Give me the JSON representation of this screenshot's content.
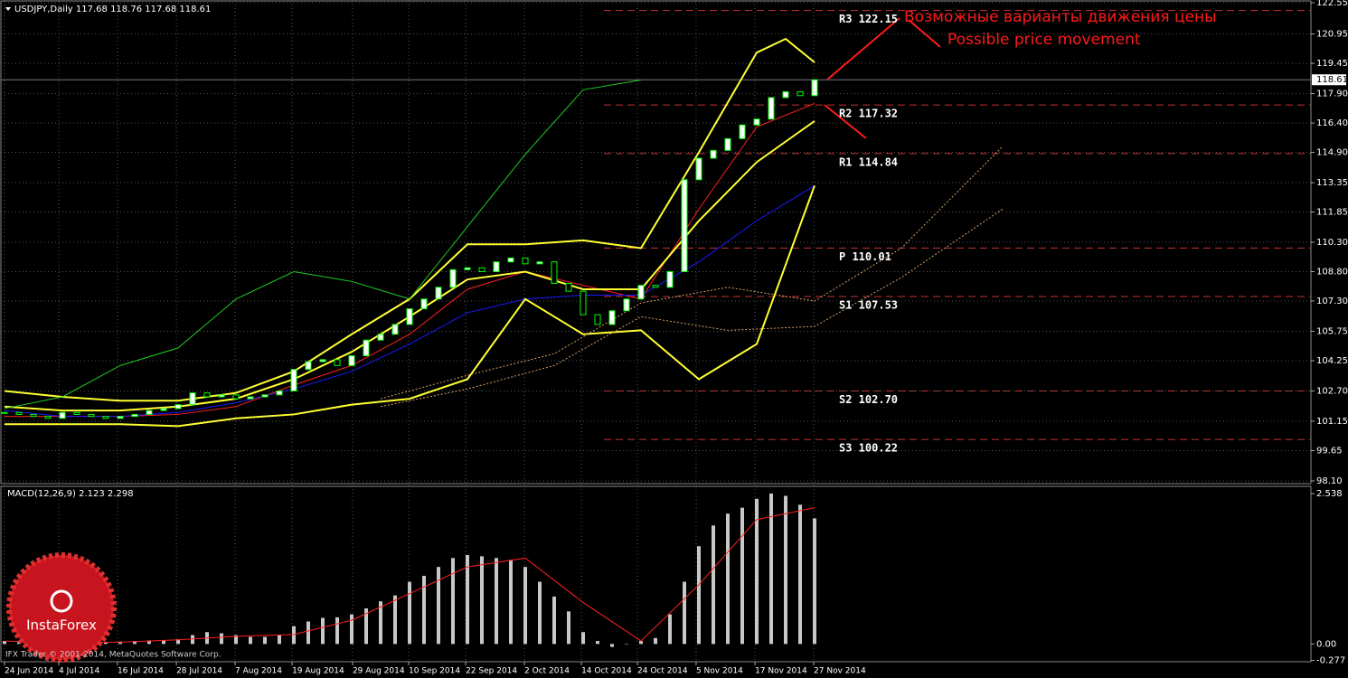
{
  "header": "USDJPY,Daily  117.68 118.76 117.68 118.61",
  "annotations": [
    "Возможные варианты движения цены",
    "Possible price movement"
  ],
  "footer": "IFX Trader © 2001-2014, MetaQuotes Software Corp.",
  "logo": "InstaForex",
  "chart_data": [
    {
      "type": "candlestick",
      "ylim": [
        98.1,
        122.55
      ],
      "yticks": [
        122.55,
        120.95,
        119.45,
        {
          "value": 117.9,
          "label": "117.90"
        },
        {
          "value": 116.4,
          "label": "116.40"
        },
        {
          "value": 114.9,
          "label": "114.90"
        },
        113.35,
        111.85,
        {
          "value": 110.3,
          "label": "110.30"
        },
        {
          "value": 108.8,
          "label": "108.80"
        },
        {
          "value": 107.3,
          "label": "107.30"
        },
        105.75,
        104.25,
        {
          "value": 102.7,
          "label": "102.70"
        },
        101.15,
        99.65,
        {
          "value": 98.1,
          "label": "98.10"
        }
      ],
      "grid": true,
      "last": 118.61,
      "values": [
        101.6,
        101.5,
        101.4,
        101.3,
        101.6,
        101.5,
        101.4,
        101.3,
        101.4,
        101.5,
        101.7,
        101.8,
        102.0,
        102.6,
        102.4,
        102.5,
        102.3,
        102.4,
        102.5,
        102.7,
        103.8,
        104.2,
        104.3,
        104.0,
        104.5,
        105.3,
        105.6,
        106.1,
        106.9,
        107.4,
        108.0,
        108.9,
        109.0,
        108.8,
        109.3,
        109.5,
        109.2,
        109.3,
        108.2,
        107.8,
        106.6,
        106.1,
        106.8,
        107.4,
        108.1,
        108.0,
        108.8,
        113.5,
        114.6,
        115.0,
        115.6,
        116.3,
        116.6,
        117.7,
        118.0,
        117.8,
        118.61
      ],
      "up_color": "#ffffff",
      "down_color": "#000000",
      "candle_edge": "#00ff00",
      "series": [
        {
          "color": "#ff2020",
          "x": [
            0,
            4,
            8,
            12,
            16,
            20,
            24,
            28,
            32,
            36,
            40,
            44,
            48,
            52,
            56
          ],
          "values": [
            101.4,
            101.4,
            101.4,
            101.5,
            101.9,
            103.0,
            104.0,
            105.6,
            107.9,
            108.8,
            108.1,
            107.4,
            112.0,
            116.2,
            117.4
          ]
        },
        {
          "color": "#1a1aff",
          "x": [
            0,
            4,
            8,
            12,
            16,
            20,
            24,
            28,
            32,
            36,
            40,
            44,
            48,
            52,
            56
          ],
          "values": [
            101.7,
            101.4,
            101.4,
            101.6,
            102.1,
            102.8,
            103.7,
            105.1,
            106.7,
            107.4,
            107.6,
            107.6,
            109.3,
            111.4,
            113.2
          ]
        },
        {
          "color": "#ffff33",
          "x": [
            0,
            4,
            8,
            12,
            16,
            20,
            24,
            28,
            32,
            36,
            40,
            44,
            48,
            52,
            54,
            56
          ],
          "values": [
            102.7,
            102.4,
            102.2,
            102.2,
            102.6,
            103.7,
            105.6,
            107.4,
            110.2,
            110.2,
            110.4,
            110.0,
            114.9,
            120.0,
            120.7,
            119.5
          ]
        },
        {
          "color": "#ffff33",
          "x": [
            0,
            4,
            8,
            12,
            16,
            20,
            24,
            28,
            32,
            36,
            40,
            44,
            48,
            52,
            56
          ],
          "values": [
            101.9,
            101.7,
            101.7,
            101.9,
            102.3,
            103.3,
            104.7,
            106.5,
            108.4,
            108.8,
            107.9,
            107.9,
            111.4,
            114.4,
            116.5
          ]
        },
        {
          "color": "#ffff33",
          "x": [
            0,
            4,
            8,
            12,
            16,
            20,
            24,
            28,
            32,
            36,
            40,
            44,
            48,
            52,
            56
          ],
          "values": [
            101.0,
            101.0,
            101.0,
            100.9,
            101.3,
            101.5,
            102.0,
            102.3,
            103.3,
            107.4,
            105.6,
            105.8,
            103.3,
            105.1,
            113.2
          ]
        },
        {
          "color": "#22cc22",
          "x": [
            0,
            4,
            8,
            12,
            16,
            20,
            24,
            28,
            32,
            36,
            40,
            44
          ],
          "values": [
            101.8,
            102.4,
            104.0,
            104.9,
            107.4,
            108.8,
            108.3,
            107.4,
            111.1,
            114.8,
            118.1,
            118.6
          ]
        },
        {
          "color": "#d9a066",
          "dash": true,
          "x": [
            26,
            32,
            38,
            44,
            50,
            56,
            62,
            69
          ],
          "values": [
            102.3,
            103.5,
            104.6,
            107.2,
            108.0,
            107.3,
            110.0,
            115.2
          ]
        },
        {
          "color": "#d9a066",
          "dash": true,
          "x": [
            26,
            32,
            38,
            44,
            50,
            56,
            62,
            69
          ],
          "values": [
            101.9,
            102.8,
            104.0,
            106.5,
            105.8,
            106.0,
            108.5,
            112.0
          ]
        }
      ],
      "levels": [
        {
          "label": "R3 122.15",
          "value": 122.15
        },
        {
          "label": "R2 117.32",
          "value": 117.32
        },
        {
          "label": "R1 114.84",
          "value": 114.84
        },
        {
          "label": "P 110.01",
          "value": 110.01
        },
        {
          "label": "S1 107.53",
          "value": 107.53
        },
        {
          "label": "S2 102.70",
          "value": 102.7
        },
        {
          "label": "S3 100.22",
          "value": 100.22
        }
      ],
      "level_color": "#c83232"
    },
    {
      "type": "bar",
      "title": "MACD(12,26,9) 2.123 2.298",
      "ylim": [
        -0.3,
        2.63
      ],
      "yticks": [
        2.538,
        {
          "value": 0,
          "label": "0.00"
        },
        -0.277
      ],
      "color": "#c8c8c8",
      "values": [
        0.05,
        0.03,
        0.0,
        -0.03,
        0.0,
        0.0,
        0.02,
        0.02,
        0.04,
        0.05,
        0.06,
        0.06,
        0.08,
        0.15,
        0.2,
        0.18,
        0.15,
        0.12,
        0.12,
        0.15,
        0.3,
        0.38,
        0.44,
        0.45,
        0.5,
        0.6,
        0.72,
        0.82,
        1.05,
        1.15,
        1.3,
        1.45,
        1.5,
        1.48,
        1.45,
        1.42,
        1.3,
        1.05,
        0.8,
        0.55,
        0.2,
        0.05,
        -0.05,
        0.0,
        0.05,
        0.1,
        0.5,
        1.05,
        1.65,
        2.0,
        2.2,
        2.3,
        2.45,
        2.54,
        2.5,
        2.35,
        2.12
      ],
      "series": [
        {
          "color": "#ff2020",
          "x": [
            0,
            4,
            8,
            12,
            16,
            20,
            24,
            28,
            32,
            36,
            40,
            44,
            48,
            52,
            56
          ],
          "values": [
            0.05,
            0.02,
            0.03,
            0.07,
            0.13,
            0.16,
            0.4,
            0.85,
            1.3,
            1.45,
            0.7,
            0.05,
            1.0,
            2.1,
            2.3
          ]
        }
      ],
      "xticks": [
        {
          "value": 0,
          "label": "24 Jun 2014"
        },
        {
          "value": 3.75,
          "label": "4 Jul 2014"
        },
        {
          "value": 7.81,
          "label": "16 Jul 2014"
        },
        {
          "value": 11.88,
          "label": "28 Jul 2014"
        },
        {
          "value": 15.94,
          "label": "7 Aug 2014"
        },
        {
          "value": 19.88,
          "label": "19 Aug 2014"
        },
        {
          "value": 24.06,
          "label": "29 Aug 2014"
        },
        {
          "value": 27.94,
          "label": "10 Sep 2014"
        },
        {
          "value": 31.88,
          "label": "22 Sep 2014"
        },
        {
          "value": 35.94,
          "label": "2 Oct 2014"
        },
        {
          "value": 39.88,
          "label": "14 Oct 2014"
        },
        {
          "value": 43.75,
          "label": "24 Oct 2014"
        },
        {
          "value": 47.81,
          "label": "5 Nov 2014"
        },
        {
          "value": 51.88,
          "label": "17 Nov 2014"
        },
        {
          "value": 55.94,
          "label": "27 Nov 2014"
        }
      ]
    }
  ]
}
